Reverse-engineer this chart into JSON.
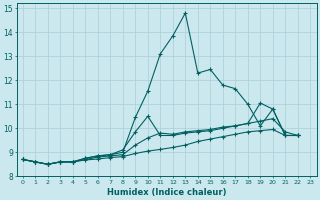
{
  "xlabel": "Humidex (Indice chaleur)",
  "ylabel": "",
  "background_color": "#cce8ef",
  "grid_color": "#aacdd6",
  "line_color": "#006060",
  "xlim": [
    -0.5,
    23.5
  ],
  "ylim": [
    8,
    15.2
  ],
  "xticks": [
    0,
    1,
    2,
    3,
    4,
    5,
    6,
    7,
    8,
    9,
    10,
    11,
    12,
    13,
    14,
    15,
    16,
    17,
    18,
    19,
    20,
    21,
    22,
    23
  ],
  "yticks": [
    8,
    9,
    10,
    11,
    12,
    13,
    14,
    15
  ],
  "x_values": [
    0,
    1,
    2,
    3,
    4,
    5,
    6,
    7,
    8,
    9,
    10,
    11,
    12,
    13,
    14,
    15,
    16,
    17,
    18,
    19,
    20,
    21,
    22
  ],
  "series1": [
    8.7,
    8.6,
    8.5,
    8.6,
    8.6,
    8.75,
    8.85,
    8.9,
    9.0,
    10.45,
    11.55,
    13.1,
    13.85,
    14.8,
    12.3,
    12.45,
    11.8,
    11.65,
    11.0,
    10.1,
    10.8,
    9.7,
    9.7
  ],
  "series2": [
    8.7,
    8.6,
    8.5,
    8.6,
    8.6,
    8.75,
    8.85,
    8.9,
    9.1,
    9.85,
    10.5,
    9.7,
    9.7,
    9.8,
    9.85,
    9.9,
    10.0,
    10.1,
    10.2,
    11.05,
    10.8,
    9.7,
    9.7
  ],
  "series3": [
    8.7,
    8.6,
    8.5,
    8.6,
    8.6,
    8.7,
    8.8,
    8.85,
    8.9,
    9.3,
    9.6,
    9.8,
    9.75,
    9.85,
    9.9,
    9.95,
    10.05,
    10.1,
    10.2,
    10.3,
    10.4,
    9.85,
    9.7
  ],
  "series4": [
    8.7,
    8.6,
    8.5,
    8.6,
    8.6,
    8.68,
    8.72,
    8.78,
    8.82,
    8.95,
    9.05,
    9.12,
    9.2,
    9.3,
    9.45,
    9.55,
    9.65,
    9.75,
    9.85,
    9.9,
    9.95,
    9.7,
    9.7
  ]
}
